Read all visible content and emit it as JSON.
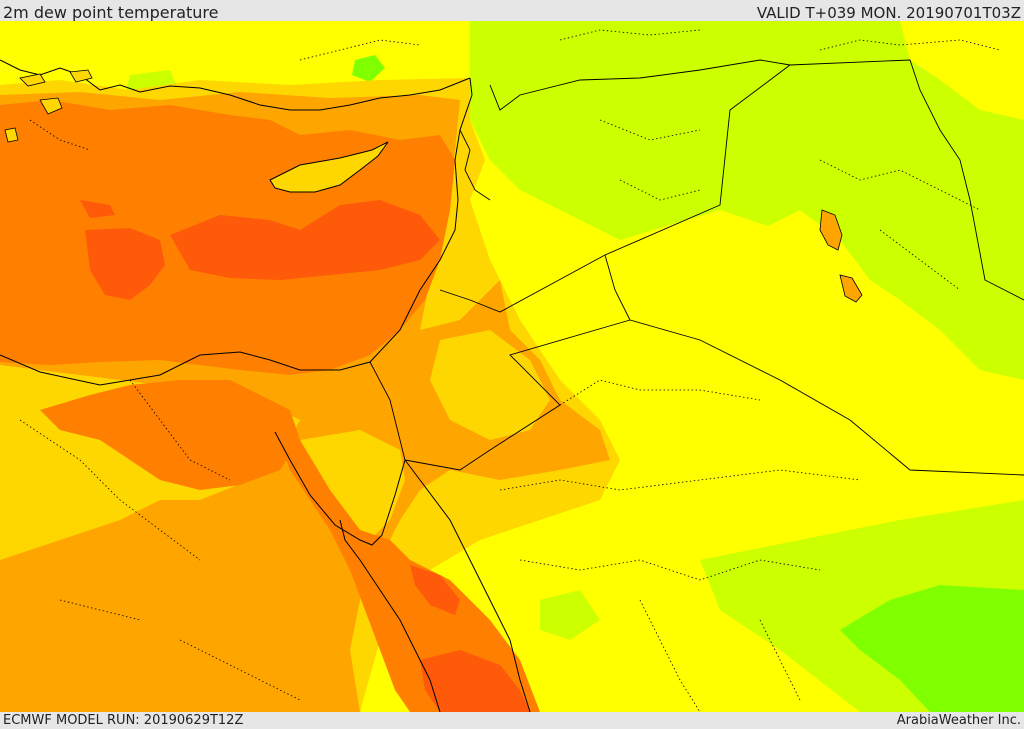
{
  "header": {
    "title": "2m dew point temperature",
    "valid": "VALID T+039 MON. 20190701T03Z"
  },
  "footer": {
    "model_run": "ECMWF MODEL RUN: 20190629T12Z",
    "credit": "ArabiaWeather Inc."
  },
  "colors": {
    "dark_orange": "#ff5a0a",
    "orange": "#ff7f00",
    "light_orange": "#ffa500",
    "gold": "#ffd700",
    "yellow": "#ffff00",
    "yellow_green": "#ccff00",
    "green": "#80ff00",
    "border": "#000000"
  }
}
